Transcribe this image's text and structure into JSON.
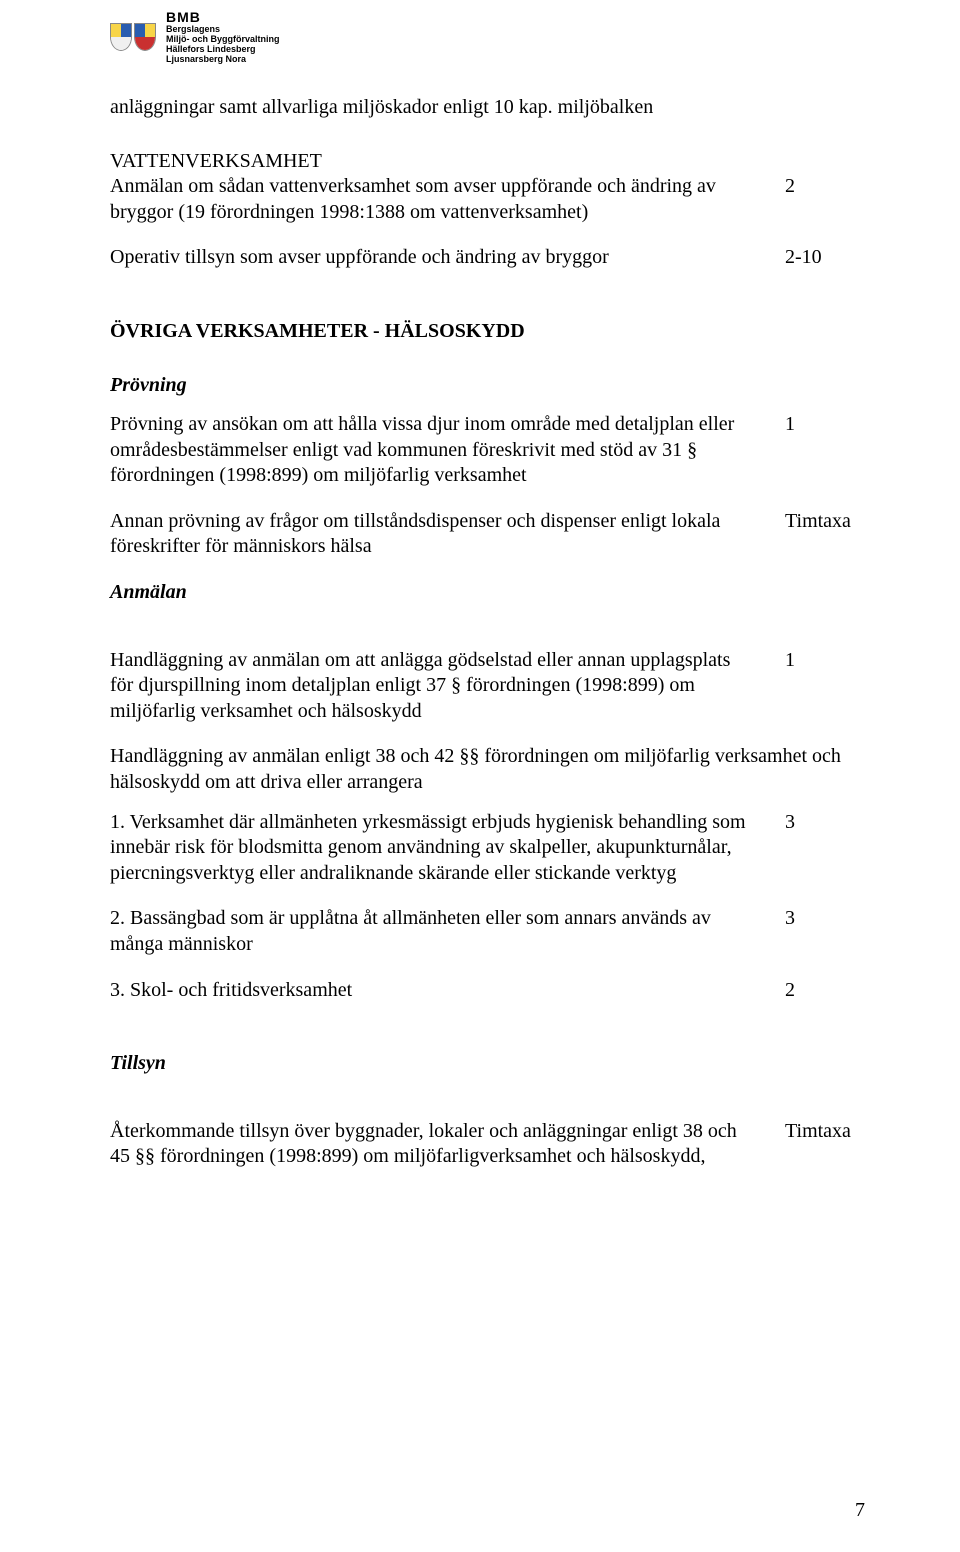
{
  "header": {
    "bmb": "BMB",
    "line1": "Bergslagens",
    "line2": "Miljö- och Byggförvaltning",
    "line3": "Hällefors Lindesberg",
    "line4": "Ljusnarsberg Nora",
    "crest1": {
      "tl": "#f8d548",
      "tr": "#2a5db0",
      "b": "#f0f0f0"
    },
    "crest2": {
      "tl": "#2a5db0",
      "tr": "#f8d548",
      "b": "#c93030"
    }
  },
  "intro": "anläggningar samt allvarliga miljöskador enligt 10 kap. miljöbalken",
  "vatten": {
    "heading": "VATTENVERKSAMHET",
    "p1": "Anmälan om sådan vattenverksamhet som avser uppförande och ändring av bryggor (19 förordningen 1998:1388 om vattenverksamhet)",
    "v1": "2",
    "p2": "Operativ tillsyn som avser uppförande och ändring av bryggor",
    "v2": "2-10"
  },
  "ovriga": {
    "heading": "ÖVRIGA VERKSAMHETER - HÄLSOSKYDD",
    "provning_label": "Prövning",
    "p1": "Prövning av ansökan om att hålla vissa djur inom område med detaljplan eller områdesbestämmelser enligt vad kommunen föreskrivit med stöd av 31 § förordningen (1998:899) om miljöfarlig verksamhet",
    "v1": "1",
    "p2": "Annan prövning av frågor om tillståndsdispenser och dispenser enligt lokala föreskrifter för människors hälsa",
    "v2": "Timtaxa",
    "anmalan_label": "Anmälan",
    "p3": "Handläggning av anmälan om att anlägga gödselstad eller annan upplagsplats för djurspillning inom detaljplan enligt 37 § förordningen (1998:899) om miljöfarlig verksamhet och hälsoskydd",
    "v3": "1",
    "p4": "Handläggning av anmälan enligt 38 och 42 §§ förordningen om miljöfarlig verksamhet och hälsoskydd om att driva eller arrangera",
    "li1": "1. Verksamhet där allmänheten yrkesmässigt erbjuds hygienisk behandling som innebär risk för blodsmitta genom användning av skalpeller, akupunkturnålar, piercningsverktyg eller andraliknande skärande eller stickande verktyg",
    "lv1": "3",
    "li2": "2. Bassängbad som är upplåtna åt allmänheten eller som annars används av många människor",
    "lv2": "3",
    "li3": "3. Skol- och fritidsverksamhet",
    "lv3": "2",
    "tillsyn_label": "Tillsyn",
    "p5": "Återkommande tillsyn över byggnader, lokaler och anläggningar enligt 38 och 45 §§ förordningen (1998:899) om miljöfarligverksamhet och hälsoskydd,",
    "v5": "Timtaxa"
  },
  "page_number": "7"
}
